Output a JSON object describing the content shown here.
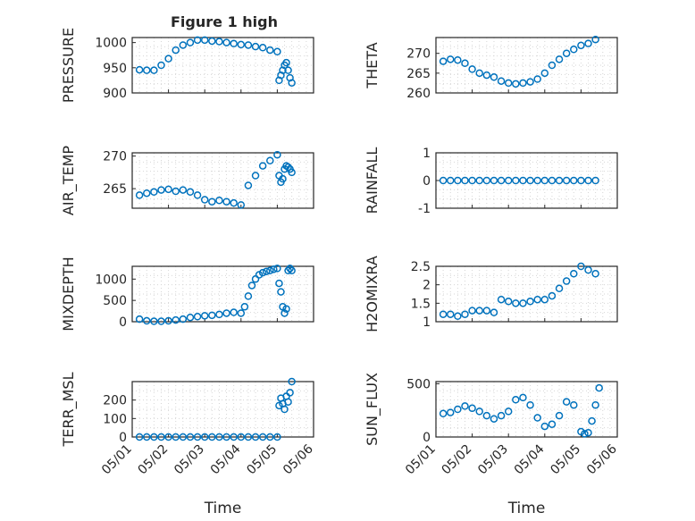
{
  "figure": {
    "title": "Figure 1 high"
  },
  "style": {
    "marker_color": "#0072BD",
    "axis_color": "#262626",
    "grid_color": "#d6d6d6"
  },
  "chart_data": [
    {
      "type": "scatter",
      "ylabel": "PRESSURE",
      "xlabel": "",
      "ylim": [
        900,
        1010
      ],
      "yticks": [
        900,
        950,
        1000
      ],
      "xlim": [
        0,
        5
      ],
      "grid": true,
      "x_tick_labels": [
        "05/01",
        "05/02",
        "05/03",
        "05/04",
        "05/05",
        "05/06"
      ],
      "x": [
        0.2,
        0.4,
        0.6,
        0.8,
        1.0,
        1.2,
        1.4,
        1.6,
        1.8,
        2.0,
        2.2,
        2.4,
        2.6,
        2.8,
        3.0,
        3.2,
        3.4,
        3.6,
        3.8,
        4.0,
        4.05,
        4.1,
        4.15,
        4.2,
        4.25,
        4.3,
        4.35,
        4.4
      ],
      "y": [
        946,
        945,
        945,
        955,
        968,
        985,
        995,
        1000,
        1005,
        1005,
        1003,
        1002,
        1000,
        998,
        996,
        995,
        992,
        990,
        985,
        982,
        925,
        935,
        945,
        955,
        960,
        945,
        930,
        920
      ]
    },
    {
      "type": "scatter",
      "ylabel": "THETA",
      "xlabel": "",
      "ylim": [
        260,
        274
      ],
      "yticks": [
        260,
        265,
        270
      ],
      "xlim": [
        0,
        5
      ],
      "grid": true,
      "x_tick_labels": [
        "05/01",
        "05/02",
        "05/03",
        "05/04",
        "05/05",
        "05/06"
      ],
      "x": [
        0.2,
        0.4,
        0.6,
        0.8,
        1.0,
        1.2,
        1.4,
        1.6,
        1.8,
        2.0,
        2.2,
        2.4,
        2.6,
        2.8,
        3.0,
        3.2,
        3.4,
        3.6,
        3.8,
        4.0,
        4.2,
        4.4
      ],
      "y": [
        268,
        268.5,
        268.3,
        267.5,
        266,
        265,
        264.5,
        264,
        263,
        262.5,
        262.3,
        262.5,
        262.8,
        263.5,
        265,
        267,
        268.5,
        270,
        271,
        272,
        272.5,
        273.5
      ]
    },
    {
      "type": "scatter",
      "ylabel": "AIR_TEMP",
      "xlabel": "",
      "ylim": [
        262,
        270.5
      ],
      "yticks": [
        265,
        270
      ],
      "xlim": [
        0,
        5
      ],
      "grid": true,
      "x_tick_labels": [
        "05/01",
        "05/02",
        "05/03",
        "05/04",
        "05/05",
        "05/06"
      ],
      "x": [
        0.2,
        0.4,
        0.6,
        0.8,
        1.0,
        1.2,
        1.4,
        1.6,
        1.8,
        2.0,
        2.2,
        2.4,
        2.6,
        2.8,
        3.0,
        3.2,
        3.4,
        3.6,
        3.8,
        4.0,
        4.05,
        4.1,
        4.15,
        4.2,
        4.25,
        4.3,
        4.35,
        4.4
      ],
      "y": [
        264,
        264.3,
        264.5,
        264.8,
        264.9,
        264.6,
        264.8,
        264.5,
        264.0,
        263.3,
        263.0,
        263.2,
        263.0,
        262.8,
        262.5,
        265.5,
        267.0,
        268.5,
        269.3,
        270.2,
        267,
        266,
        266.5,
        268,
        268.5,
        268.3,
        268,
        267.5
      ]
    },
    {
      "type": "scatter",
      "ylabel": "RAINFALL",
      "xlabel": "",
      "ylim": [
        -1,
        1
      ],
      "yticks": [
        -1,
        0,
        1
      ],
      "xlim": [
        0,
        5
      ],
      "grid": true,
      "x_tick_labels": [
        "05/01",
        "05/02",
        "05/03",
        "05/04",
        "05/05",
        "05/06"
      ],
      "x": [
        0.2,
        0.4,
        0.6,
        0.8,
        1.0,
        1.2,
        1.4,
        1.6,
        1.8,
        2.0,
        2.2,
        2.4,
        2.6,
        2.8,
        3.0,
        3.2,
        3.4,
        3.6,
        3.8,
        4.0,
        4.2,
        4.4
      ],
      "y": [
        0,
        0,
        0,
        0,
        0,
        0,
        0,
        0,
        0,
        0,
        0,
        0,
        0,
        0,
        0,
        0,
        0,
        0,
        0,
        0,
        0,
        0
      ]
    },
    {
      "type": "scatter",
      "ylabel": "MIXDEPTH",
      "xlabel": "",
      "ylim": [
        0,
        1300
      ],
      "yticks": [
        0,
        500,
        1000
      ],
      "xlim": [
        0,
        5
      ],
      "grid": true,
      "x_tick_labels": [
        "05/01",
        "05/02",
        "05/03",
        "05/04",
        "05/05",
        "05/06"
      ],
      "x": [
        0.2,
        0.4,
        0.6,
        0.8,
        1.0,
        1.2,
        1.4,
        1.6,
        1.8,
        2.0,
        2.2,
        2.4,
        2.6,
        2.8,
        3.0,
        3.1,
        3.2,
        3.3,
        3.4,
        3.5,
        3.6,
        3.7,
        3.8,
        3.9,
        4.0,
        4.05,
        4.1,
        4.15,
        4.2,
        4.25,
        4.3,
        4.35,
        4.4
      ],
      "y": [
        60,
        20,
        10,
        10,
        20,
        40,
        60,
        100,
        120,
        140,
        150,
        170,
        200,
        220,
        200,
        350,
        600,
        850,
        1000,
        1100,
        1150,
        1180,
        1200,
        1230,
        1250,
        900,
        700,
        350,
        200,
        300,
        1200,
        1250,
        1200
      ]
    },
    {
      "type": "scatter",
      "ylabel": "H2OMIXRA",
      "xlabel": "",
      "ylim": [
        1,
        2.5
      ],
      "yticks": [
        1,
        1.5,
        2,
        2.5
      ],
      "xlim": [
        0,
        5
      ],
      "grid": true,
      "x_tick_labels": [
        "05/01",
        "05/02",
        "05/03",
        "05/04",
        "05/05",
        "05/06"
      ],
      "x": [
        0.2,
        0.4,
        0.6,
        0.8,
        1.0,
        1.2,
        1.4,
        1.6,
        1.8,
        2.0,
        2.2,
        2.4,
        2.6,
        2.8,
        3.0,
        3.2,
        3.4,
        3.6,
        3.8,
        4.0,
        4.2,
        4.4
      ],
      "y": [
        1.2,
        1.2,
        1.15,
        1.2,
        1.3,
        1.3,
        1.3,
        1.25,
        1.6,
        1.55,
        1.5,
        1.5,
        1.55,
        1.6,
        1.6,
        1.7,
        1.9,
        2.1,
        2.3,
        2.5,
        2.4,
        2.3
      ]
    },
    {
      "type": "scatter",
      "ylabel": "TERR_MSL",
      "xlabel": "Time",
      "ylim": [
        0,
        300
      ],
      "yticks": [
        0,
        100,
        200
      ],
      "xlim": [
        0,
        5
      ],
      "grid": true,
      "x_tick_labels": [
        "05/01",
        "05/02",
        "05/03",
        "05/04",
        "05/05",
        "05/06"
      ],
      "x": [
        0.2,
        0.4,
        0.6,
        0.8,
        1.0,
        1.2,
        1.4,
        1.6,
        1.8,
        2.0,
        2.2,
        2.4,
        2.6,
        2.8,
        3.0,
        3.2,
        3.4,
        3.6,
        3.8,
        4.0,
        4.05,
        4.1,
        4.15,
        4.2,
        4.25,
        4.3,
        4.35,
        4.4
      ],
      "y": [
        0,
        0,
        0,
        0,
        0,
        0,
        0,
        0,
        0,
        0,
        0,
        0,
        0,
        0,
        0,
        0,
        0,
        0,
        0,
        0,
        170,
        210,
        180,
        150,
        220,
        190,
        240,
        300
      ]
    },
    {
      "type": "scatter",
      "ylabel": "SUN_FLUX",
      "xlabel": "Time",
      "ylim": [
        0,
        520
      ],
      "yticks": [
        0,
        500
      ],
      "xlim": [
        0,
        5
      ],
      "grid": true,
      "x_tick_labels": [
        "05/01",
        "05/02",
        "05/03",
        "05/04",
        "05/05",
        "05/06"
      ],
      "x": [
        0.2,
        0.4,
        0.6,
        0.8,
        1.0,
        1.2,
        1.4,
        1.6,
        1.8,
        2.0,
        2.2,
        2.4,
        2.6,
        2.8,
        3.0,
        3.2,
        3.4,
        3.6,
        3.8,
        4.0,
        4.1,
        4.2,
        4.3,
        4.4,
        4.5
      ],
      "y": [
        220,
        230,
        260,
        290,
        270,
        240,
        200,
        170,
        200,
        240,
        350,
        370,
        300,
        180,
        100,
        120,
        200,
        330,
        300,
        50,
        30,
        40,
        150,
        300,
        460
      ]
    }
  ]
}
